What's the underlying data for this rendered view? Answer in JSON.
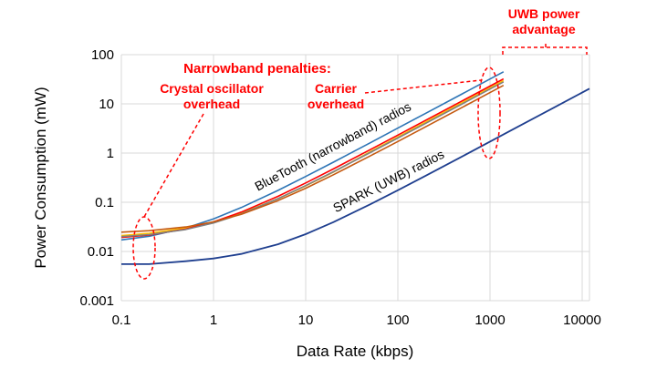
{
  "chart_data": {
    "type": "line",
    "title": "",
    "xlabel": "Data Rate (kbps)",
    "ylabel": "Power Consumption (mW)",
    "xscale": "log",
    "yscale": "log",
    "xlim": [
      0.1,
      12000
    ],
    "ylim": [
      0.001,
      100
    ],
    "grid": true,
    "xticks": [
      "0.1",
      "1",
      "10",
      "100",
      "1000",
      "10000"
    ],
    "xtick_values": [
      0.1,
      1,
      10,
      100,
      1000,
      10000
    ],
    "yticks": [
      "0.001",
      "0.01",
      "0.1",
      "1",
      "10",
      "100"
    ],
    "ytick_values": [
      0.001,
      0.01,
      0.1,
      1,
      10,
      100
    ],
    "series": [
      {
        "color": "#2e75b6",
        "x": [
          0.1,
          0.2,
          0.5,
          1,
          2,
          5,
          10,
          20,
          50,
          100,
          200,
          500,
          1000,
          1400
        ],
        "y": [
          0.0172,
          0.0204,
          0.03,
          0.046,
          0.078,
          0.174,
          0.334,
          0.654,
          1.61,
          3.21,
          6.41,
          16.0,
          32.0,
          44.8
        ]
      },
      {
        "color": "#ffc000",
        "x": [
          0.1,
          0.2,
          0.5,
          1,
          2,
          5,
          10,
          20,
          50,
          100,
          200,
          500,
          1000,
          1400
        ],
        "y": [
          0.021,
          0.0234,
          0.03,
          0.04,
          0.06,
          0.118,
          0.215,
          0.41,
          1.06,
          2.12,
          4.24,
          10.6,
          21.2,
          29.7
        ]
      },
      {
        "color": "#ff0000",
        "x": [
          0.1,
          0.2,
          0.5,
          1,
          2,
          5,
          10,
          20,
          50,
          100,
          200,
          500,
          1000,
          1400
        ],
        "y": [
          0.0193,
          0.0216,
          0.0285,
          0.04,
          0.063,
          0.132,
          0.247,
          0.477,
          1.17,
          2.32,
          4.62,
          11.5,
          23.0,
          32.2
        ]
      },
      {
        "color": "#7f7f7f",
        "x": [
          0.1,
          0.2,
          0.5,
          1,
          2,
          5,
          10,
          20,
          50,
          100,
          200,
          500,
          1000,
          1400
        ],
        "y": [
          0.02,
          0.022,
          0.028,
          0.038,
          0.058,
          0.118,
          0.218,
          0.418,
          1.02,
          2.02,
          4.02,
          10.0,
          20.0,
          28.0
        ]
      },
      {
        "color": "#c55a11",
        "x": [
          0.1,
          0.2,
          0.5,
          1,
          2,
          5,
          10,
          20,
          50,
          100,
          200,
          500,
          1000,
          1400
        ],
        "y": [
          0.0247,
          0.0264,
          0.0315,
          0.04,
          0.057,
          0.108,
          0.193,
          0.363,
          0.873,
          1.72,
          3.42,
          8.52,
          17.0,
          23.8
        ]
      },
      {
        "color": "#1f3f8f",
        "x": [
          0.1,
          0.2,
          0.5,
          1,
          2,
          5,
          10,
          20,
          50,
          100,
          200,
          500,
          1000,
          2000,
          5000,
          10000,
          12000
        ],
        "y": [
          0.00552,
          0.00554,
          0.00635,
          0.0072,
          0.0089,
          0.014,
          0.0225,
          0.0395,
          0.0905,
          0.1755,
          0.3455,
          0.8555,
          1.71,
          3.41,
          8.5,
          17.0,
          20.4
        ]
      }
    ],
    "curve_labels": {
      "bluetooth": "BlueTooth (narrowband) radios",
      "spark": "SPARK (UWB) radios"
    },
    "annotations": {
      "narrowband_title": "Narrowband penalties:",
      "crystal_line1": "Crystal oscillator",
      "crystal_line2": "overhead",
      "carrier_line1": "Carrier",
      "carrier_line2": "overhead",
      "uwb_line1": "UWB power",
      "uwb_line2": "advantage",
      "color": "#ff0000"
    }
  }
}
